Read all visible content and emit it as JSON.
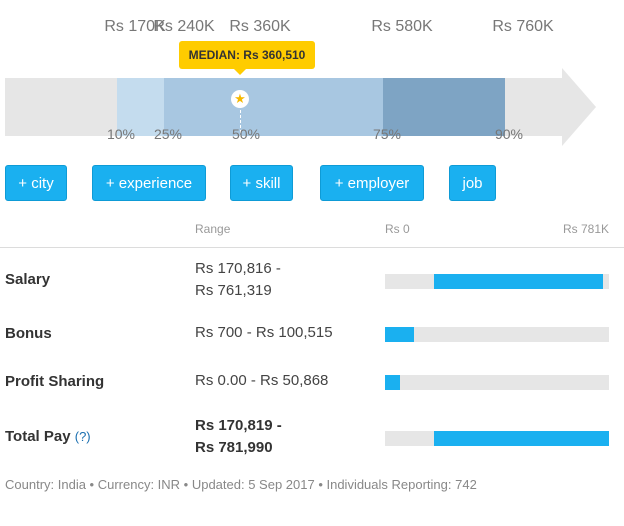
{
  "percentile_chart": {
    "top_labels": [
      "Rs 170K",
      "Rs 240K",
      "Rs 360K",
      "Rs 580K",
      "Rs 760K"
    ],
    "median_label": "MEDIAN: Rs 360,510",
    "median_icon": "star-icon",
    "percentile_labels": [
      "10%",
      "25%",
      "50%",
      "75%",
      "90%"
    ],
    "colors": {
      "outer": "#c4dcee",
      "inner": "#a8c7e1",
      "upper": "#7ea4c4",
      "median": "#ffcc00"
    }
  },
  "filters": [
    "+ city",
    "+ experience",
    "+ skill",
    "+ employer",
    "job"
  ],
  "table": {
    "range_header": "Range",
    "scale_min": "Rs 0",
    "scale_max": "Rs 781K",
    "scale_max_value": 781990,
    "rows": [
      {
        "label": "Salary",
        "range_line1": "Rs 170,816 -",
        "range_line2": "Rs 761,319",
        "min": 170816,
        "max": 761319
      },
      {
        "label": "Bonus",
        "range_line1": "Rs 700 - Rs 100,515",
        "min": 700,
        "max": 100515
      },
      {
        "label": "Profit Sharing",
        "range_line1": "Rs 0.00 - Rs 50,868",
        "min": 0,
        "max": 50868
      },
      {
        "label": "Total Pay",
        "help": "(?)",
        "range_line1": "Rs 170,819 -",
        "range_line2": "Rs 781,990",
        "min": 170819,
        "max": 781990
      }
    ]
  },
  "footer": "Country: India  •  Currency: INR  •  Updated: 5 Sep 2017  •  Individuals Reporting: 742"
}
